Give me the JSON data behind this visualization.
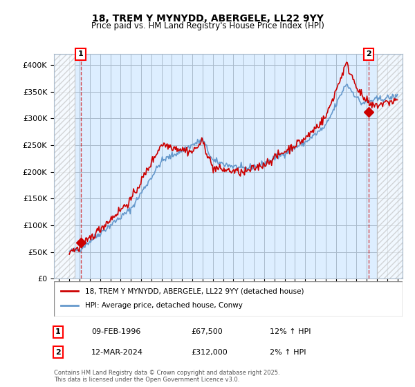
{
  "title_line1": "18, TREM Y MYNYDD, ABERGELE, LL22 9YY",
  "title_line2": "Price paid vs. HM Land Registry's House Price Index (HPI)",
  "ylabel": "",
  "xlim_start": 1993.5,
  "xlim_end": 2027.5,
  "ylim_bottom": 0,
  "ylim_top": 420000,
  "yticks": [
    0,
    50000,
    100000,
    150000,
    200000,
    250000,
    300000,
    350000,
    400000
  ],
  "ytick_labels": [
    "£0",
    "£50K",
    "£100K",
    "£150K",
    "£200K",
    "£250K",
    "£300K",
    "£350K",
    "£400K"
  ],
  "legend_line1": "18, TREM Y MYNYDD, ABERGELE, LL22 9YY (detached house)",
  "legend_line2": "HPI: Average price, detached house, Conwy",
  "marker1_year": 1996.1,
  "marker1_value": 67500,
  "marker1_label": "1",
  "marker2_year": 2024.2,
  "marker2_value": 312000,
  "marker2_label": "2",
  "info1": "1    09-FEB-1996         £67,500        12% ↑ HPI",
  "info2": "2    12-MAR-2024         £312,000       2% ↑ HPI",
  "footnote": "Contains HM Land Registry data © Crown copyright and database right 2025.\nThis data is licensed under the Open Government Licence v3.0.",
  "red_color": "#cc0000",
  "blue_color": "#6699cc",
  "hatch_color": "#cccccc",
  "bg_color": "#ddeeff",
  "grid_color": "#aabbcc"
}
